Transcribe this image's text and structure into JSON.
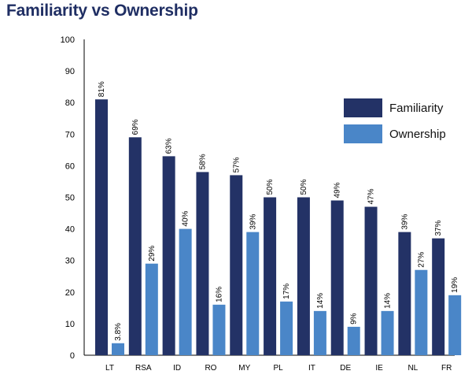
{
  "chart_data": {
    "type": "bar",
    "title": "Familiarity vs Ownership",
    "categories": [
      "LT",
      "RSA",
      "ID",
      "RO",
      "MY",
      "PL",
      "IT",
      "DE",
      "IE",
      "NL",
      "FR"
    ],
    "series": [
      {
        "name": "Familiarity",
        "color": "#233266",
        "values": [
          81,
          69,
          63,
          58,
          57,
          50,
          50,
          49,
          47,
          39,
          37
        ],
        "labels": [
          "81%",
          "69%",
          "63%",
          "58%",
          "57%",
          "50%",
          "50%",
          "49%",
          "47%",
          "39%",
          "37%"
        ]
      },
      {
        "name": "Ownership",
        "color": "#4a86c8",
        "values": [
          3.8,
          29,
          40,
          16,
          39,
          17,
          14,
          9,
          14,
          27,
          19
        ],
        "labels": [
          "3.8%",
          "29%",
          "40%",
          "16%",
          "39%",
          "17%",
          "14%",
          "9%",
          "14%",
          "27%",
          "19%"
        ]
      }
    ],
    "ylim": [
      0,
      100
    ],
    "yticks": [
      "0",
      "10",
      "20",
      "30",
      "40",
      "50",
      "60",
      "70",
      "80",
      "90",
      "100"
    ],
    "legend_position": "right",
    "grid": false
  }
}
